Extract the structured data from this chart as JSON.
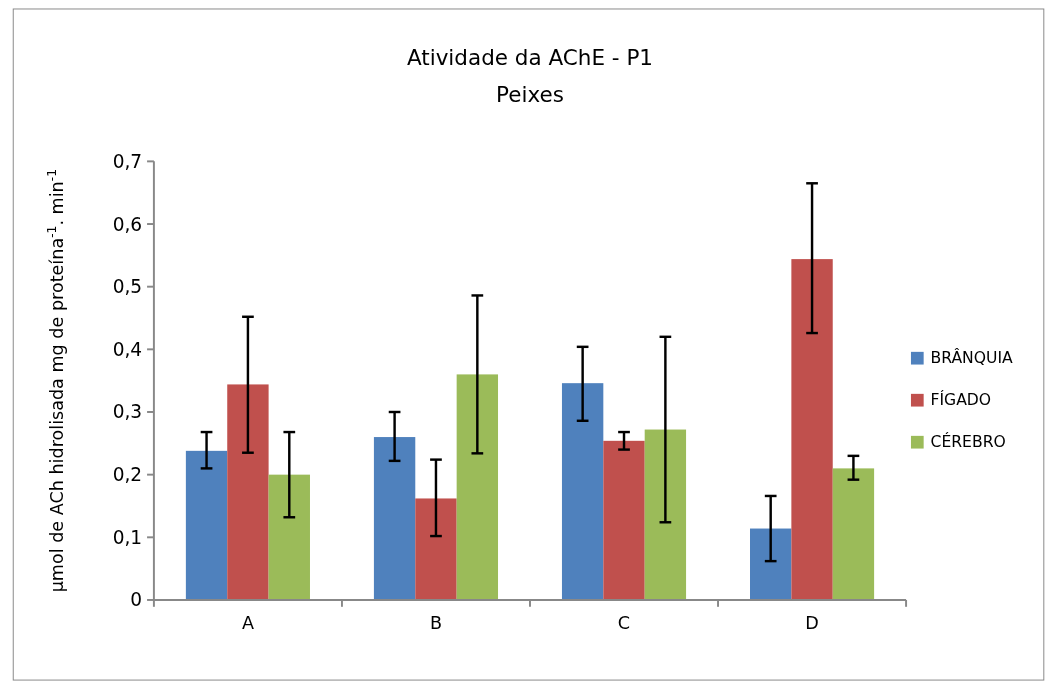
{
  "chart_data": {
    "type": "bar",
    "title": "Atividade da AChE - P1",
    "subtitle": "Peixes",
    "ylabel": "µmol de ACh hidrolisada mg de proteína$^{-1}$. min$^{-1}$",
    "categories": [
      "A",
      "B",
      "C",
      "D"
    ],
    "series": [
      {
        "name": "BRÂNQUIA",
        "color": "#4f81bd",
        "values": [
          0.238,
          0.26,
          0.346,
          0.114
        ],
        "errors": [
          [
            0.21,
            0.268
          ],
          [
            0.222,
            0.3
          ],
          [
            0.286,
            0.404
          ],
          [
            0.062,
            0.166
          ]
        ]
      },
      {
        "name": "FÍGADO",
        "color": "#c0504d",
        "values": [
          0.344,
          0.162,
          0.254,
          0.544
        ],
        "errors": [
          [
            0.235,
            0.452
          ],
          [
            0.102,
            0.224
          ],
          [
            0.24,
            0.268
          ],
          [
            0.426,
            0.665
          ]
        ]
      },
      {
        "name": "CÉREBRO",
        "color": "#9bbb59",
        "values": [
          0.2,
          0.36,
          0.272,
          0.21
        ],
        "errors": [
          [
            0.132,
            0.268
          ],
          [
            0.234,
            0.486
          ],
          [
            0.124,
            0.42
          ],
          [
            0.192,
            0.23
          ]
        ]
      }
    ],
    "ylim": [
      0,
      0.7
    ],
    "yticks": [
      0,
      {
        "value": 0.1,
        "label": "0,1"
      },
      {
        "value": 0.2,
        "label": "0,2"
      },
      {
        "value": 0.3,
        "label": "0,3"
      },
      {
        "value": 0.4,
        "label": "0,4"
      },
      {
        "value": 0.5,
        "label": "0,5"
      },
      {
        "value": 0.6,
        "label": "0,6"
      },
      {
        "value": 0.7,
        "label": "0,7"
      }
    ],
    "grid": false,
    "legend": "right"
  }
}
